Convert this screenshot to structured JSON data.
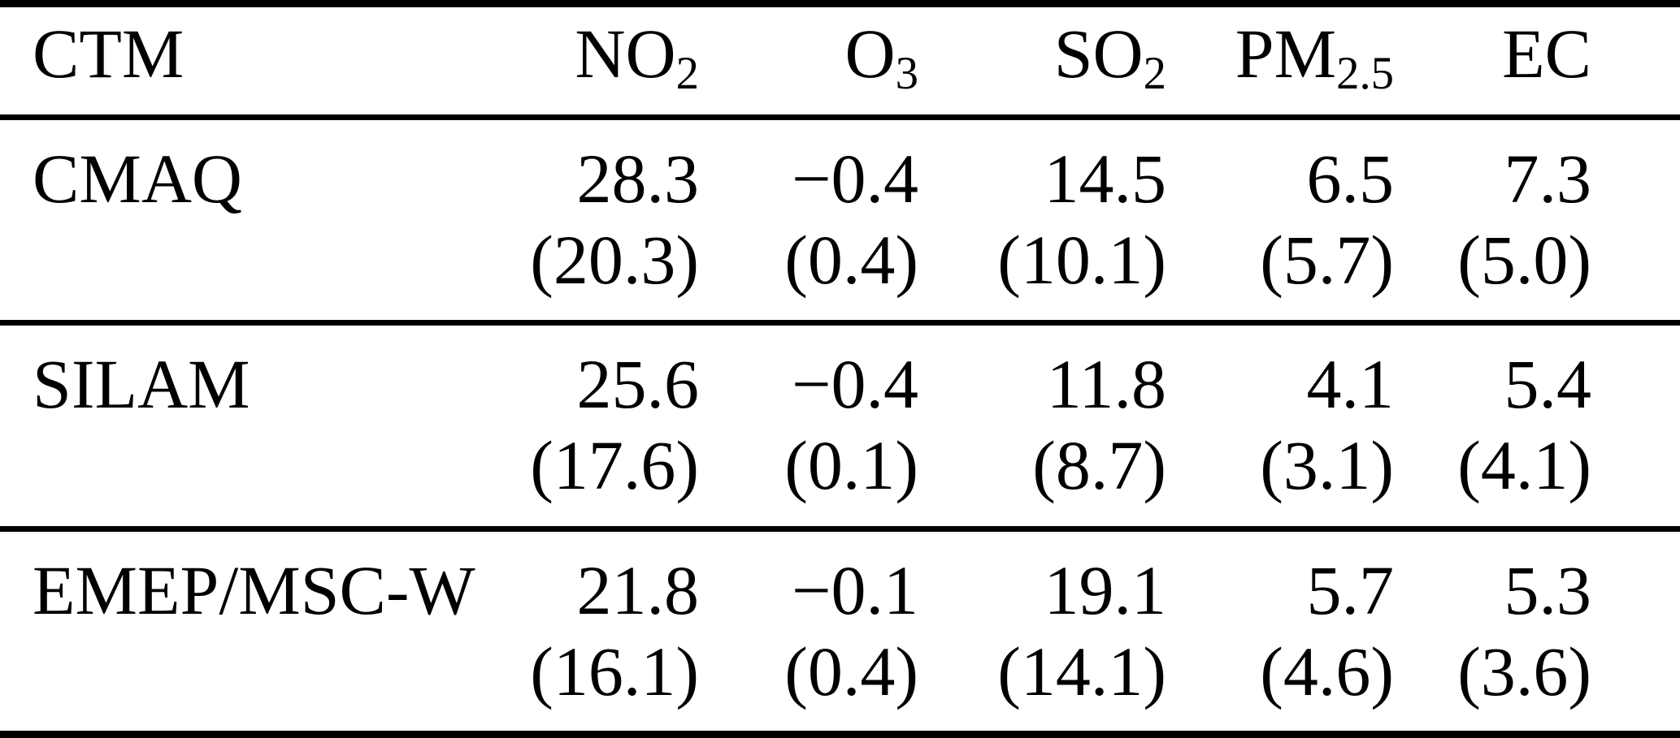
{
  "table": {
    "columns": [
      {
        "base": "CTM",
        "sub": ""
      },
      {
        "base": "NO",
        "sub": "2"
      },
      {
        "base": "O",
        "sub": "3"
      },
      {
        "base": "SO",
        "sub": "2"
      },
      {
        "base": "PM",
        "sub": "2.5"
      },
      {
        "base": "EC",
        "sub": ""
      }
    ],
    "rows": [
      {
        "model": "CMAQ",
        "values": [
          "28.3",
          "−0.4",
          "14.5",
          "6.5",
          "7.3"
        ],
        "parens": [
          "(20.3)",
          "(0.4)",
          "(10.1)",
          "(5.7)",
          "(5.0)"
        ]
      },
      {
        "model": "SILAM",
        "values": [
          "25.6",
          "−0.4",
          "11.8",
          "4.1",
          "5.4"
        ],
        "parens": [
          "(17.6)",
          "(0.1)",
          "(8.7)",
          "(3.1)",
          "(4.1)"
        ]
      },
      {
        "model": "EMEP/MSC-W",
        "values": [
          "21.8",
          "−0.1",
          "19.1",
          "5.7",
          "5.3"
        ],
        "parens": [
          "(16.1)",
          "(0.4)",
          "(14.1)",
          "(4.6)",
          "(3.6)"
        ]
      }
    ],
    "colors": {
      "text": "#000000",
      "background": "#ffffff",
      "rule": "#000000"
    }
  }
}
